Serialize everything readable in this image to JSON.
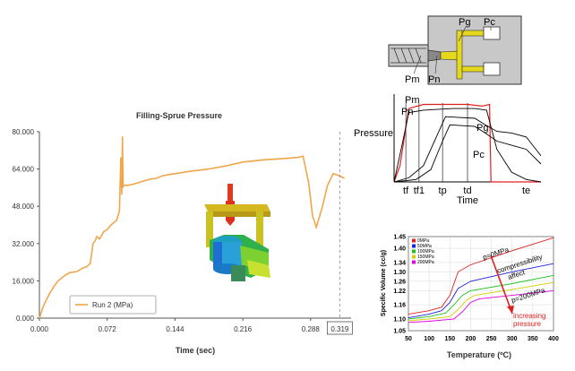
{
  "colors": {
    "series": "#f0a64b",
    "cursor": "#9a9a9a",
    "grid": "#d9d9d9"
  },
  "chart_data": [
    {
      "type": "line",
      "title": "Filling-Sprue Pressure",
      "xlabel": "Time (sec)",
      "ylabel": "",
      "xlim": [
        0,
        0.331
      ],
      "ylim": [
        0,
        80000
      ],
      "x_ticks": [
        "0.000",
        "0.072",
        "0.144",
        "0.216",
        "0.288",
        "0.319"
      ],
      "y_ticks": [
        "0.000",
        "16.000",
        "32.000",
        "48.000",
        "64.000",
        "80.000"
      ],
      "cursor_x": 0.319,
      "legend": "bottom-left",
      "series": [
        {
          "name": "Run 2 (MPa)",
          "x": [
            0,
            0.004,
            0.01,
            0.016,
            0.02,
            0.026,
            0.032,
            0.04,
            0.046,
            0.05,
            0.054,
            0.057,
            0.059,
            0.061,
            0.064,
            0.068,
            0.072,
            0.076,
            0.082,
            0.085,
            0.0865,
            0.0875,
            0.0882,
            0.0889,
            0.0893,
            0.094,
            0.1,
            0.108,
            0.116,
            0.124,
            0.13,
            0.136,
            0.144,
            0.16,
            0.18,
            0.2,
            0.216,
            0.24,
            0.26,
            0.275,
            0.28,
            0.286,
            0.29,
            0.294,
            0.3,
            0.306,
            0.312,
            0.319,
            0.324
          ],
          "values": [
            0,
            5000,
            10000,
            14000,
            16000,
            18000,
            19500,
            20000,
            21500,
            22000,
            23500,
            32000,
            33000,
            35000,
            34000,
            37000,
            38000,
            40000,
            42000,
            46000,
            69000,
            53000,
            78000,
            56000,
            57000,
            57000,
            57500,
            58500,
            59500,
            60000,
            61000,
            61500,
            62000,
            63000,
            64000,
            65500,
            67000,
            68000,
            68500,
            69000,
            69500,
            58000,
            44000,
            39000,
            47000,
            57000,
            62000,
            61000,
            60000
          ]
        }
      ]
    },
    {
      "type": "line",
      "title": "",
      "xlabel": "Time",
      "ylabel": "Pressure",
      "x_ticks": [
        "tf",
        "tf1",
        "tp",
        "td",
        "te"
      ],
      "series": [
        {
          "name": "Pm",
          "x": [
            0,
            0.04,
            0.1,
            0.2,
            0.5,
            0.6,
            0.65,
            0.66,
            1
          ],
          "values": [
            0,
            0.2,
            0.9,
            0.95,
            0.95,
            0.93,
            0.95,
            0,
            0
          ]
        },
        {
          "name": "Pn",
          "x": [
            0,
            0.06,
            0.1,
            0.2,
            0.4,
            0.55,
            0.63,
            0.7,
            0.8,
            0.9,
            1
          ],
          "values": [
            0,
            0.5,
            0.85,
            0.88,
            0.9,
            0.9,
            0.88,
            0.4,
            0.12,
            0.03,
            0
          ]
        },
        {
          "name": "Pg",
          "x": [
            0,
            0.1,
            0.2,
            0.3,
            0.35,
            0.55,
            0.62,
            0.7,
            0.8,
            0.9,
            1
          ],
          "values": [
            0,
            0.05,
            0.2,
            0.6,
            0.8,
            0.78,
            0.7,
            0.62,
            0.6,
            0.55,
            0.32
          ]
        },
        {
          "name": "Pc",
          "x": [
            0,
            0.15,
            0.25,
            0.33,
            0.38,
            0.55,
            0.62,
            0.7,
            0.8,
            0.9,
            1
          ],
          "values": [
            0,
            0.03,
            0.15,
            0.5,
            0.7,
            0.68,
            0.6,
            0.5,
            0.45,
            0.4,
            0.22
          ]
        }
      ]
    },
    {
      "type": "line",
      "title": "",
      "xlabel": "Temperature (ºC)",
      "ylabel": "Specific Volume (cc/g)",
      "xlim": [
        50,
        400
      ],
      "ylim": [
        1.05,
        1.45
      ],
      "x_ticks": [
        "50",
        "100",
        "150",
        "200",
        "250",
        "300",
        "350",
        "400"
      ],
      "y_ticks": [
        "1.05",
        "1.10",
        "1.16",
        "1.22",
        "1.26",
        "1.30",
        "1.34",
        "1.40",
        "1.45"
      ],
      "grid": true,
      "legend": "top-left",
      "series": [
        {
          "name": "0MPa",
          "color": "#e02020",
          "x": [
            50,
            100,
            130,
            150,
            170,
            200,
            300,
            400
          ],
          "values": [
            1.12,
            1.135,
            1.15,
            1.2,
            1.3,
            1.33,
            1.39,
            1.445
          ]
        },
        {
          "name": "50MPa",
          "color": "#2020e0",
          "x": [
            50,
            100,
            130,
            150,
            170,
            200,
            300,
            400
          ],
          "values": [
            1.105,
            1.12,
            1.135,
            1.17,
            1.23,
            1.26,
            1.3,
            1.335
          ]
        },
        {
          "name": "100MPa",
          "color": "#20c020",
          "x": [
            50,
            100,
            140,
            160,
            180,
            200,
            300,
            400
          ],
          "values": [
            1.1,
            1.11,
            1.125,
            1.16,
            1.2,
            1.22,
            1.25,
            1.285
          ]
        },
        {
          "name": "150MPa",
          "color": "#d0d000",
          "x": [
            50,
            100,
            150,
            170,
            190,
            210,
            300,
            400
          ],
          "values": [
            1.092,
            1.1,
            1.11,
            1.14,
            1.18,
            1.2,
            1.225,
            1.255
          ]
        },
        {
          "name": "200MPa",
          "color": "#e000e0",
          "x": [
            50,
            100,
            160,
            180,
            200,
            220,
            300,
            400
          ],
          "values": [
            1.085,
            1.09,
            1.1,
            1.13,
            1.17,
            1.185,
            1.2,
            1.22
          ]
        }
      ],
      "annotations": [
        "p=0MPa",
        "compressibility",
        "affect",
        "p=200MPa",
        "increasing",
        "pressure"
      ]
    }
  ],
  "diagram": {
    "labels": [
      "Pg",
      "Pc",
      "Pm",
      "Pn"
    ]
  }
}
